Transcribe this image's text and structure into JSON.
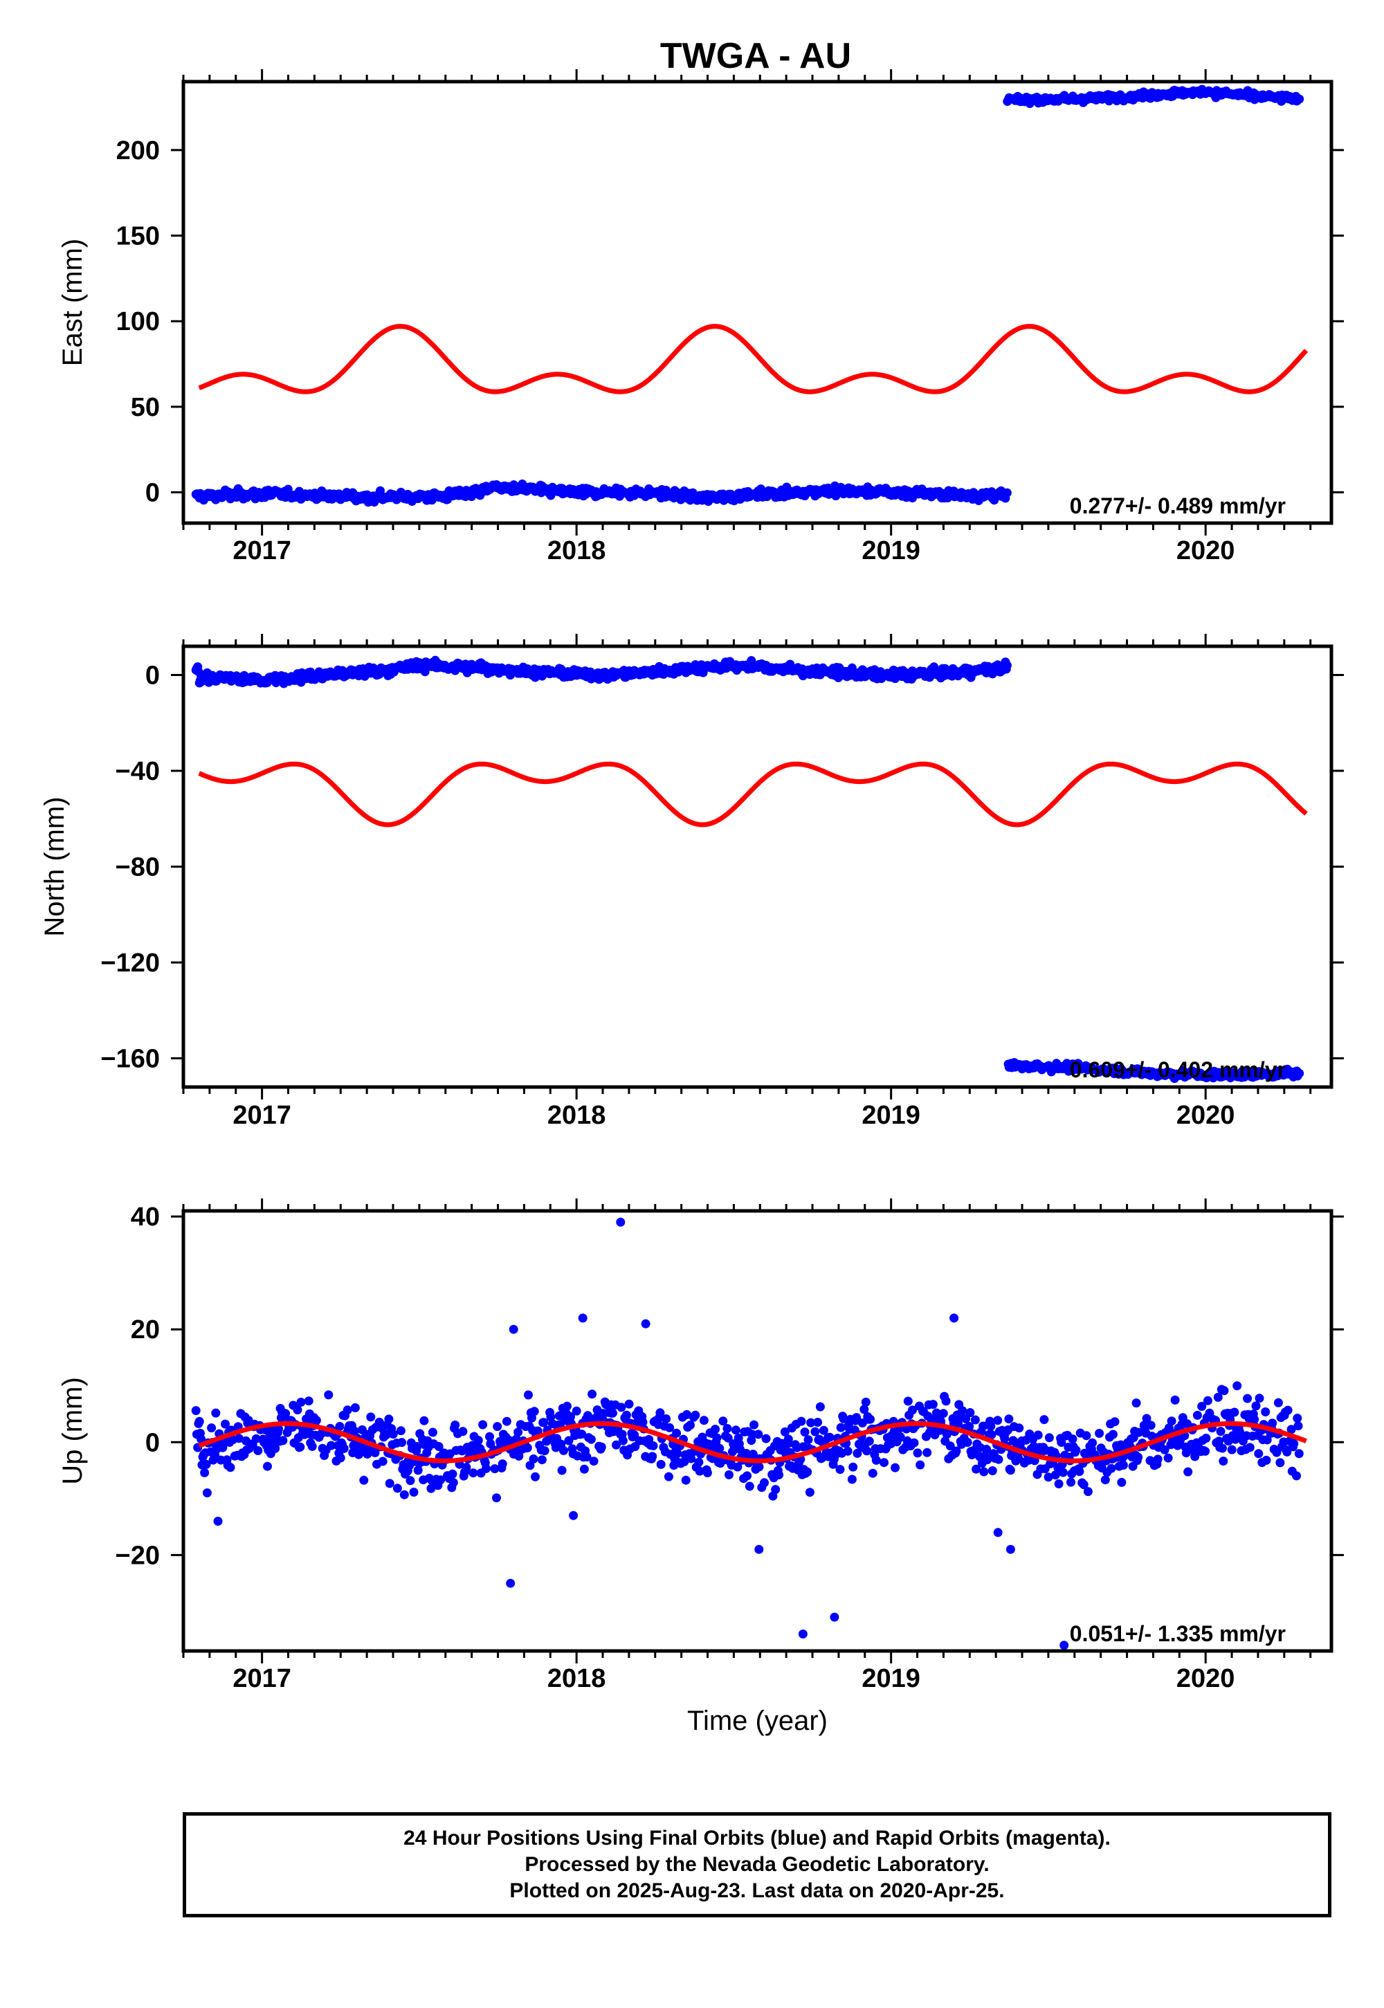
{
  "title": "TWGA - AU",
  "chart_data": [
    {
      "type": "scatter",
      "ylabel": "East (mm)",
      "xlim": [
        2016.75,
        2020.4
      ],
      "ylim": [
        -18,
        240
      ],
      "xticks": [
        2017,
        2018,
        2019,
        2020
      ],
      "yticks": [
        0,
        50,
        100,
        150,
        200
      ],
      "rate_label": "0.277+/- 0.489 mm/yr",
      "series": [
        {
          "color": "#0000ff",
          "segments": [
            {
              "x_start": 2016.79,
              "x_end": 2019.37,
              "points": [
                [
                  2016.8,
                  -2
                ],
                [
                  2017.0,
                  -1
                ],
                [
                  2017.2,
                  -2
                ],
                [
                  2017.4,
                  -3
                ],
                [
                  2017.6,
                  -2
                ],
                [
                  2017.75,
                  3
                ],
                [
                  2017.9,
                  1
                ],
                [
                  2018.0,
                  0
                ],
                [
                  2018.2,
                  0
                ],
                [
                  2018.4,
                  -3
                ],
                [
                  2018.6,
                  -1
                ],
                [
                  2018.8,
                  1
                ],
                [
                  2019.0,
                  0
                ],
                [
                  2019.2,
                  -1
                ],
                [
                  2019.37,
                  -2
                ]
              ],
              "spread": 2.5
            },
            {
              "x_start": 2019.37,
              "x_end": 2020.3,
              "points": [
                [
                  2019.37,
                  229
                ],
                [
                  2019.6,
                  230
                ],
                [
                  2019.8,
                  232
                ],
                [
                  2020.0,
                  234
                ],
                [
                  2020.2,
                  231
                ],
                [
                  2020.3,
                  230
                ]
              ],
              "spread": 2.0
            }
          ]
        },
        {
          "color": "#ff0000",
          "model": {
            "offset": 72,
            "ann_amp": 14,
            "ann_phase": 2017.44,
            "semi_amp": 11,
            "semi_phase": 2016.94
          }
        }
      ]
    },
    {
      "type": "scatter",
      "ylabel": "North (mm)",
      "xlim": [
        2016.75,
        2020.4
      ],
      "ylim": [
        -172,
        12
      ],
      "xticks": [
        2017,
        2018,
        2019,
        2020
      ],
      "yticks": [
        0,
        -40,
        -80,
        -120,
        -160
      ],
      "rate_label": "0.609+/- 0.402 mm/yr",
      "series": [
        {
          "color": "#0000ff",
          "segments": [
            {
              "x_start": 2016.79,
              "x_end": 2019.37,
              "points": [
                [
                  2016.8,
                  -1
                ],
                [
                  2017.0,
                  -2
                ],
                [
                  2017.2,
                  0
                ],
                [
                  2017.4,
                  2
                ],
                [
                  2017.5,
                  4
                ],
                [
                  2017.7,
                  3
                ],
                [
                  2017.9,
                  1
                ],
                [
                  2018.1,
                  0
                ],
                [
                  2018.3,
                  2
                ],
                [
                  2018.5,
                  4
                ],
                [
                  2018.6,
                  3
                ],
                [
                  2018.8,
                  1
                ],
                [
                  2019.0,
                  0
                ],
                [
                  2019.2,
                  1
                ],
                [
                  2019.37,
                  3
                ]
              ],
              "spread": 2.0
            },
            {
              "x_start": 2019.37,
              "x_end": 2020.3,
              "points": [
                [
                  2019.37,
                  -163
                ],
                [
                  2019.6,
                  -164
                ],
                [
                  2019.8,
                  -166
                ],
                [
                  2020.0,
                  -167
                ],
                [
                  2020.3,
                  -166
                ]
              ],
              "spread": 1.5
            }
          ]
        },
        {
          "color": "#ff0000",
          "model": {
            "offset": -46,
            "ann_amp": -9,
            "ann_phase": 2017.4,
            "semi_amp": 7.5,
            "semi_phase": 2017.15
          }
        }
      ]
    },
    {
      "type": "scatter",
      "ylabel": "Up (mm)",
      "xlabel": "Time (year)",
      "xlim": [
        2016.75,
        2020.4
      ],
      "ylim": [
        -37,
        41
      ],
      "xticks": [
        2017,
        2018,
        2019,
        2020
      ],
      "yticks": [
        40,
        20,
        0,
        -20
      ],
      "rate_label": "0.051+/- 1.335 mm/yr",
      "series": [
        {
          "color": "#0000ff",
          "segments": [
            {
              "x_start": 2016.79,
              "x_end": 2020.3,
              "points": [
                [
                  2016.8,
                  -1
                ],
                [
                  2017.1,
                  3
                ],
                [
                  2017.35,
                  0
                ],
                [
                  2017.6,
                  -3
                ],
                [
                  2017.85,
                  0
                ],
                [
                  2018.1,
                  3
                ],
                [
                  2018.35,
                  0
                ],
                [
                  2018.6,
                  -3
                ],
                [
                  2018.85,
                  0
                ],
                [
                  2019.1,
                  3
                ],
                [
                  2019.35,
                  0
                ],
                [
                  2019.6,
                  -3
                ],
                [
                  2019.85,
                  0
                ],
                [
                  2020.1,
                  3
                ],
                [
                  2020.3,
                  0
                ]
              ],
              "spread": 6.0
            },
            {
              "outliers": [
                [
                  2018.14,
                  39
                ],
                [
                  2018.72,
                  -34
                ],
                [
                  2018.82,
                  -31
                ],
                [
                  2017.79,
                  -25
                ],
                [
                  2019.38,
                  -19
                ],
                [
                  2019.55,
                  -36
                ],
                [
                  2018.58,
                  -19
                ],
                [
                  2017.8,
                  20
                ],
                [
                  2018.02,
                  22
                ],
                [
                  2019.2,
                  22
                ],
                [
                  2018.22,
                  21
                ],
                [
                  2016.86,
                  -14
                ],
                [
                  2017.99,
                  -13
                ],
                [
                  2019.34,
                  -16
                ]
              ]
            }
          ]
        },
        {
          "color": "#ff0000",
          "model": {
            "offset": 0,
            "ann_amp": 3.3,
            "ann_phase": 2017.08,
            "semi_amp": 0,
            "semi_phase": 0
          }
        }
      ]
    }
  ],
  "caption": {
    "line1": "24 Hour Positions Using Final Orbits (blue) and Rapid Orbits (magenta).",
    "line2": "Processed by the Nevada Geodetic Laboratory.",
    "line3": "Plotted on 2025-Aug-23. Last data on 2020-Apr-25."
  }
}
